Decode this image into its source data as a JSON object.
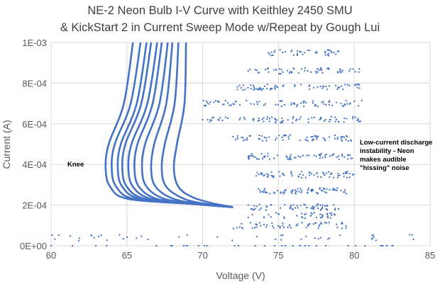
{
  "chart_data": {
    "type": "scatter",
    "title_line1": "NE-2 Neon Bulb I-V Curve with Keithley 2450 SMU",
    "title_line2": "& KickStart 2 in Current Sweep Mode w/Repeat by Gough Lui",
    "xlabel": "Voltage (V)",
    "ylabel": "Current (A)",
    "xlim": [
      60,
      85
    ],
    "ylim": [
      0,
      0.001
    ],
    "x_ticks": [
      "60",
      "65",
      "70",
      "75",
      "80",
      "85"
    ],
    "y_ticks": [
      "0E+00",
      "2E-04",
      "4E-04",
      "6E-04",
      "8E-04",
      "1E-03"
    ],
    "grid": true,
    "color": "#4472C4",
    "annotations": [
      {
        "text": "Knee",
        "x": 61.1,
        "y": 0.00041
      },
      {
        "text": "Low-current discharge instability - Neon makes audible \"hissing\" noise",
        "x": 80.4,
        "y": 0.00049
      }
    ],
    "curves_mA": [
      [
        [
          65.4,
          1.0
        ],
        [
          64.8,
          0.7
        ],
        [
          63.8,
          0.5
        ],
        [
          63.6,
          0.38
        ],
        [
          63.9,
          0.29
        ],
        [
          65.1,
          0.23
        ],
        [
          69.5,
          0.205
        ],
        [
          72,
          0.19
        ]
      ],
      [
        [
          65.9,
          1.0
        ],
        [
          65.25,
          0.7
        ],
        [
          64.2,
          0.5
        ],
        [
          64.0,
          0.38
        ],
        [
          64.3,
          0.29
        ],
        [
          65.5,
          0.23
        ],
        [
          69.5,
          0.205
        ],
        [
          72,
          0.19
        ]
      ],
      [
        [
          66.3,
          1.0
        ],
        [
          65.65,
          0.7
        ],
        [
          64.6,
          0.5
        ],
        [
          64.4,
          0.38
        ],
        [
          64.7,
          0.29
        ],
        [
          65.9,
          0.23
        ],
        [
          69.5,
          0.205
        ],
        [
          72,
          0.19
        ]
      ],
      [
        [
          66.6,
          1.0
        ],
        [
          65.95,
          0.7
        ],
        [
          64.9,
          0.5
        ],
        [
          64.7,
          0.38
        ],
        [
          65.0,
          0.29
        ],
        [
          66.2,
          0.23
        ],
        [
          69.5,
          0.205
        ],
        [
          72,
          0.19
        ]
      ],
      [
        [
          67.0,
          1.0
        ],
        [
          66.35,
          0.7
        ],
        [
          65.3,
          0.5
        ],
        [
          65.1,
          0.38
        ],
        [
          65.4,
          0.29
        ],
        [
          66.6,
          0.23
        ],
        [
          69.5,
          0.205
        ],
        [
          72,
          0.19
        ]
      ],
      [
        [
          67.3,
          1.0
        ],
        [
          66.7,
          0.7
        ],
        [
          65.7,
          0.5
        ],
        [
          65.5,
          0.38
        ],
        [
          65.8,
          0.29
        ],
        [
          67.0,
          0.23
        ],
        [
          69.6,
          0.205
        ],
        [
          72,
          0.19
        ]
      ],
      [
        [
          67.7,
          1.0
        ],
        [
          67.15,
          0.7
        ],
        [
          66.2,
          0.5
        ],
        [
          66.0,
          0.38
        ],
        [
          66.3,
          0.29
        ],
        [
          67.5,
          0.23
        ],
        [
          69.8,
          0.205
        ],
        [
          72,
          0.19
        ]
      ],
      [
        [
          68.0,
          1.0
        ],
        [
          67.6,
          0.7
        ],
        [
          66.8,
          0.5
        ],
        [
          66.6,
          0.38
        ],
        [
          66.9,
          0.29
        ],
        [
          68.1,
          0.23
        ],
        [
          70.0,
          0.205
        ],
        [
          72,
          0.19
        ]
      ],
      [
        [
          68.4,
          1.0
        ],
        [
          68.15,
          0.7
        ],
        [
          67.5,
          0.5
        ],
        [
          67.3,
          0.38
        ],
        [
          67.6,
          0.29
        ],
        [
          68.8,
          0.23
        ],
        [
          70.3,
          0.205
        ],
        [
          72,
          0.19
        ]
      ],
      [
        [
          68.9,
          1.0
        ],
        [
          68.8,
          0.7
        ],
        [
          68.3,
          0.5
        ],
        [
          68.1,
          0.38
        ],
        [
          68.4,
          0.29
        ],
        [
          69.3,
          0.24
        ],
        [
          70.6,
          0.21
        ],
        [
          72,
          0.19
        ]
      ]
    ],
    "scatter_bands_mA": [
      {
        "current": 0.0,
        "v": [
          60,
          84
        ],
        "n": 40
      },
      {
        "current": 0.04,
        "v": [
          60,
          84
        ],
        "n": 45
      },
      {
        "current": 0.1,
        "v": [
          72,
          79.5
        ],
        "n": 60
      },
      {
        "current": 0.15,
        "v": [
          73,
          79
        ],
        "n": 40
      },
      {
        "current": 0.19,
        "v": [
          73,
          79
        ],
        "n": 60
      },
      {
        "current": 0.27,
        "v": [
          73.5,
          79.5
        ],
        "n": 70
      },
      {
        "current": 0.35,
        "v": [
          73.5,
          80
        ],
        "n": 70
      },
      {
        "current": 0.44,
        "v": [
          73,
          80
        ],
        "n": 70
      },
      {
        "current": 0.53,
        "v": [
          72,
          80.2
        ],
        "n": 70
      },
      {
        "current": 0.62,
        "v": [
          70,
          80.5
        ],
        "n": 80
      },
      {
        "current": 0.7,
        "v": [
          70,
          80.5
        ],
        "n": 80
      },
      {
        "current": 0.78,
        "v": [
          72,
          80.5
        ],
        "n": 70
      },
      {
        "current": 0.86,
        "v": [
          73,
          80.5
        ],
        "n": 60
      },
      {
        "current": 0.95,
        "v": [
          74,
          79
        ],
        "n": 40
      }
    ]
  }
}
